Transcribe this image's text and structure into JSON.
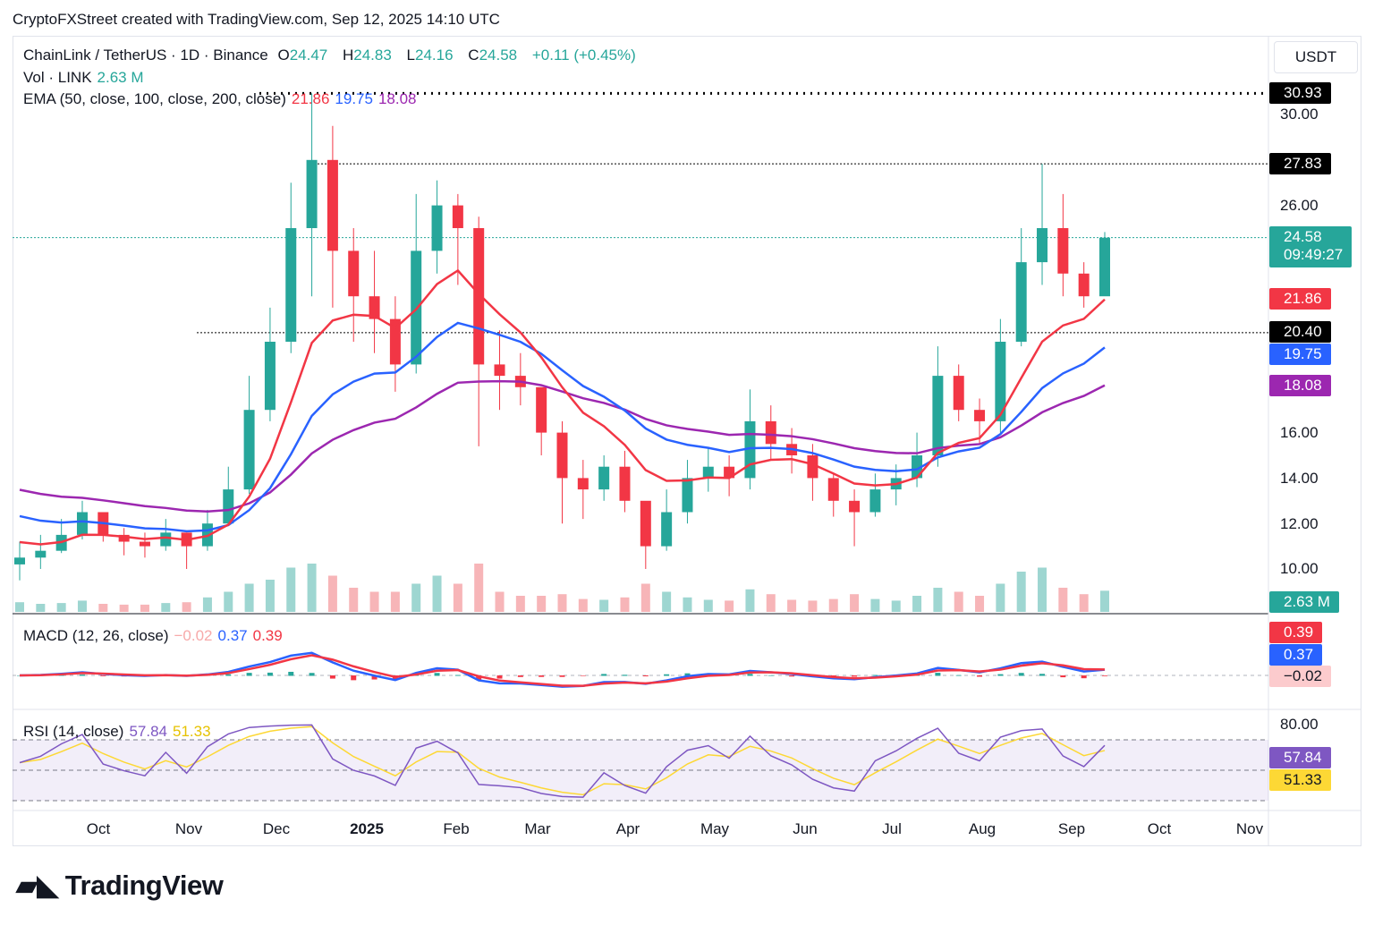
{
  "header": {
    "title": "CryptoFXStreet created with TradingView.com, Sep 12, 2025 14:10 UTC",
    "symbol": "ChainLink / TetherUS · 1D · Binance",
    "o_label": "O",
    "o": "24.47",
    "h_label": "H",
    "h": "24.83",
    "l_label": "L",
    "l": "24.16",
    "c_label": "C",
    "c": "24.58",
    "change": "+0.11 (+0.45%)",
    "vol_label": "Vol · LINK",
    "vol": "2.63 M",
    "ema_label": "EMA (50, close, 100, close, 200, close)",
    "ema50": "21.86",
    "ema100": "19.75",
    "ema200": "18.08",
    "currency": "USDT"
  },
  "macd": {
    "label": "MACD (12, 26, close)",
    "hist": "−0.02",
    "macd": "0.37",
    "signal": "0.39"
  },
  "rsi": {
    "label": "RSI (14, close)",
    "rsi": "57.84",
    "ma": "51.33",
    "axis": "80.00"
  },
  "price_axis": [
    "30.00",
    "26.00",
    "16.00",
    "14.00",
    "12.00",
    "10.00"
  ],
  "badges": {
    "high": "30.93",
    "mid_high": "27.83",
    "last": "24.58",
    "countdown": "09:49:27",
    "ema50": "21.86",
    "support": "20.40",
    "ema100": "19.75",
    "ema200": "18.08",
    "volume": "2.63 M"
  },
  "time_axis": [
    "Oct",
    "Nov",
    "Dec",
    "2025",
    "Feb",
    "Mar",
    "Apr",
    "May",
    "Jun",
    "Jul",
    "Aug",
    "Sep",
    "Oct",
    "Nov"
  ],
  "logo": "TradingView",
  "colors": {
    "up": "#26a69a",
    "down": "#f23645",
    "ema50": "#f23645",
    "ema100": "#2962ff",
    "ema200": "#9c27b0",
    "rsi": "#7e57c2",
    "rsi_ma": "#fdd835"
  },
  "chart_data": {
    "type": "candlestick",
    "interval_note": "weekly approximation of daily candles",
    "start": "2024-09-02",
    "closes": [
      10.5,
      10.8,
      11.5,
      12.5,
      11.5,
      11.2,
      11.0,
      11.6,
      11.0,
      12.0,
      13.5,
      17.0,
      20.0,
      25.0,
      28.0,
      24.0,
      22.0,
      21.0,
      19.0,
      24.0,
      26.0,
      25.0,
      19.0,
      18.5,
      18.0,
      16.0,
      14.0,
      13.5,
      14.5,
      13.0,
      11.0,
      12.5,
      14.0,
      14.5,
      14.0,
      16.5,
      15.5,
      15.0,
      14.0,
      13.0,
      12.5,
      13.5,
      14.0,
      15.0,
      18.5,
      17.0,
      16.5,
      20.0,
      23.5,
      25.0,
      23.0,
      22.0,
      24.58
    ],
    "highs": [
      11.2,
      11.5,
      12.2,
      13.0,
      12.5,
      11.8,
      11.6,
      12.2,
      11.6,
      12.6,
      14.5,
      18.5,
      21.5,
      27.0,
      30.93,
      29.5,
      25.0,
      24.0,
      22.0,
      26.5,
      27.1,
      26.5,
      25.5,
      20.5,
      19.5,
      18.0,
      16.5,
      14.8,
      15.0,
      15.2,
      12.5,
      13.5,
      14.8,
      15.3,
      15.0,
      17.9,
      17.2,
      16.2,
      15.5,
      14.2,
      13.5,
      14.2,
      14.6,
      16.0,
      19.8,
      19.0,
      17.5,
      21.0,
      25.0,
      27.83,
      26.5,
      23.5,
      24.83
    ],
    "lows": [
      9.5,
      10.0,
      10.7,
      11.3,
      11.2,
      10.6,
      10.5,
      10.8,
      10.0,
      10.8,
      12.5,
      13.3,
      16.5,
      19.5,
      22.0,
      21.5,
      20.0,
      19.5,
      17.8,
      18.6,
      23.0,
      22.5,
      15.4,
      17.0,
      17.2,
      15.0,
      12.0,
      12.2,
      13.0,
      12.5,
      10.0,
      10.8,
      12.0,
      13.4,
      13.2,
      13.5,
      14.8,
      14.2,
      13.0,
      12.3,
      11.0,
      12.3,
      12.8,
      13.6,
      14.5,
      16.5,
      15.5,
      16.0,
      19.8,
      22.5,
      22.0,
      21.5,
      22.5
    ],
    "volumes": [
      1.2,
      1.0,
      1.1,
      1.4,
      1.0,
      0.9,
      0.9,
      1.1,
      1.2,
      1.8,
      2.5,
      3.5,
      4.0,
      5.5,
      6.0,
      4.5,
      3.0,
      2.5,
      2.5,
      3.5,
      4.5,
      3.5,
      6.0,
      2.5,
      2.0,
      2.0,
      2.2,
      1.6,
      1.5,
      1.8,
      3.5,
      2.5,
      1.8,
      1.5,
      1.4,
      2.8,
      2.2,
      1.5,
      1.4,
      1.6,
      2.2,
      1.6,
      1.4,
      2.0,
      3.0,
      2.5,
      2.0,
      3.5,
      5.0,
      5.5,
      3.0,
      2.2,
      2.63
    ],
    "ema_seeds": {
      "ema50": 11.4,
      "ema100": 12.6,
      "ema200": 13.7
    },
    "ema_last": {
      "ema50": 21.86,
      "ema100": 19.75,
      "ema200": 18.08
    },
    "ylim": [
      9,
      31.5
    ],
    "rsi_bands": [
      70,
      30
    ]
  }
}
